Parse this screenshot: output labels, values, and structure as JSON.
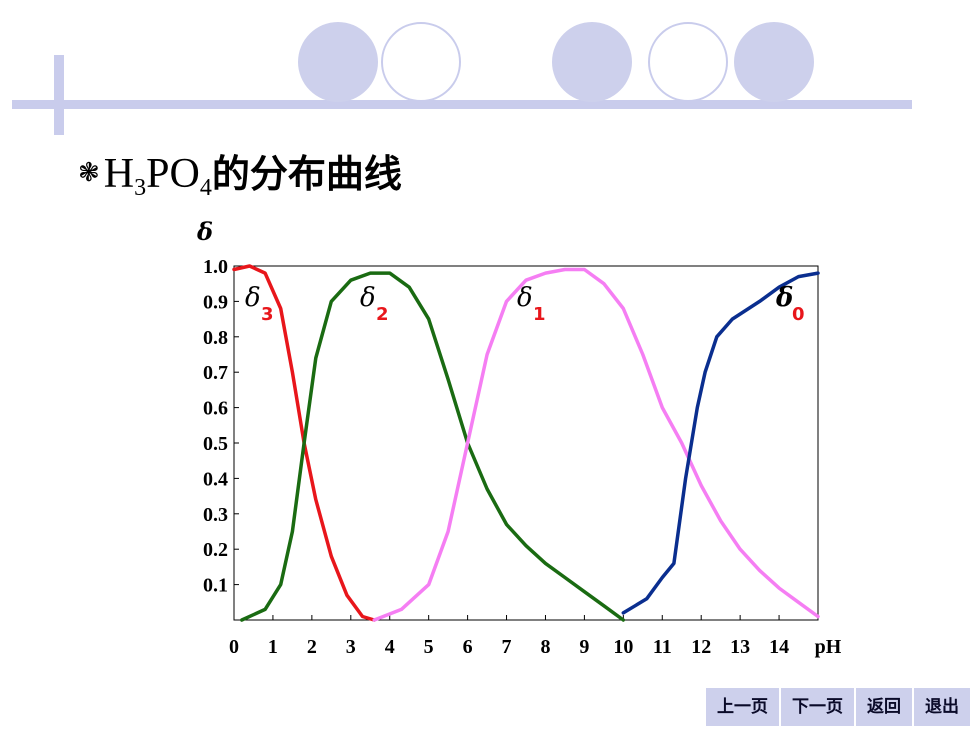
{
  "title": {
    "bullet": "❃",
    "h": "H",
    "sub3": "3",
    "po": "PO",
    "sub4": "4",
    "text": "的分布曲线"
  },
  "colors": {
    "accent_light": "#cdd0ec",
    "delta3": "#e8161b",
    "delta2": "#1a6b12",
    "delta1": "#f57ef3",
    "delta0": "#0a2e8f",
    "annotation": "#e8161b"
  },
  "nav": {
    "prev": "上一页",
    "next": "下一页",
    "back": "返回",
    "exit": "退出"
  },
  "chart_data": {
    "type": "line",
    "ylabel": "δ",
    "xlabel": "pH",
    "xlim": [
      0,
      15
    ],
    "ylim": [
      0,
      1.0
    ],
    "x_tick_labels": [
      "0",
      "1",
      "2",
      "3",
      "4",
      "5",
      "6",
      "7",
      "8",
      "9",
      "10",
      "11",
      "12",
      "13",
      "14"
    ],
    "y_tick_labels": [
      "1.0",
      "0.9",
      "0.8",
      "0.7",
      "0.6",
      "0.5",
      "0.4",
      "0.3",
      "0.2",
      "0.1"
    ],
    "y_tick_values": [
      1.0,
      0.9,
      0.8,
      0.7,
      0.6,
      0.5,
      0.4,
      0.3,
      0.2,
      0.1
    ],
    "grid": false,
    "series": [
      {
        "name": "δ3",
        "label_main": "δ",
        "label_sub": "3",
        "color": "#e8161b",
        "points": [
          [
            0,
            0.99
          ],
          [
            0.4,
            1.0
          ],
          [
            0.8,
            0.98
          ],
          [
            1.2,
            0.88
          ],
          [
            1.5,
            0.7
          ],
          [
            1.8,
            0.5
          ],
          [
            2.1,
            0.34
          ],
          [
            2.5,
            0.18
          ],
          [
            2.9,
            0.07
          ],
          [
            3.3,
            0.01
          ],
          [
            3.6,
            0.0
          ]
        ]
      },
      {
        "name": "δ2",
        "label_main": "δ",
        "label_sub": "2",
        "color": "#1a6b12",
        "points": [
          [
            0.2,
            0.0
          ],
          [
            0.8,
            0.03
          ],
          [
            1.2,
            0.1
          ],
          [
            1.5,
            0.25
          ],
          [
            1.8,
            0.5
          ],
          [
            2.1,
            0.74
          ],
          [
            2.5,
            0.9
          ],
          [
            3.0,
            0.96
          ],
          [
            3.5,
            0.98
          ],
          [
            4.0,
            0.98
          ],
          [
            4.5,
            0.94
          ],
          [
            5.0,
            0.85
          ],
          [
            5.5,
            0.68
          ],
          [
            6.0,
            0.5
          ],
          [
            6.5,
            0.37
          ],
          [
            7.0,
            0.27
          ],
          [
            7.5,
            0.21
          ],
          [
            8.0,
            0.16
          ],
          [
            8.5,
            0.12
          ],
          [
            9.0,
            0.08
          ],
          [
            9.5,
            0.04
          ],
          [
            10.0,
            0.0
          ]
        ]
      },
      {
        "name": "δ1",
        "label_main": "δ",
        "label_sub": "1",
        "color": "#f57ef3",
        "points": [
          [
            3.6,
            0.0
          ],
          [
            4.3,
            0.03
          ],
          [
            5.0,
            0.1
          ],
          [
            5.5,
            0.25
          ],
          [
            6.0,
            0.5
          ],
          [
            6.5,
            0.75
          ],
          [
            7.0,
            0.9
          ],
          [
            7.5,
            0.96
          ],
          [
            8.0,
            0.98
          ],
          [
            8.5,
            0.99
          ],
          [
            9.0,
            0.99
          ],
          [
            9.5,
            0.95
          ],
          [
            10.0,
            0.88
          ],
          [
            10.5,
            0.75
          ],
          [
            11.0,
            0.6
          ],
          [
            11.5,
            0.5
          ],
          [
            12.0,
            0.38
          ],
          [
            12.5,
            0.28
          ],
          [
            13.0,
            0.2
          ],
          [
            13.5,
            0.14
          ],
          [
            14.0,
            0.09
          ],
          [
            14.5,
            0.05
          ],
          [
            15.0,
            0.01
          ]
        ]
      },
      {
        "name": "δ0",
        "label_main": "δ",
        "label_sub": "0",
        "color": "#0a2e8f",
        "points": [
          [
            10.0,
            0.02
          ],
          [
            10.6,
            0.06
          ],
          [
            11.0,
            0.12
          ],
          [
            11.3,
            0.16
          ],
          [
            11.6,
            0.4
          ],
          [
            11.9,
            0.6
          ],
          [
            12.1,
            0.7
          ],
          [
            12.4,
            0.8
          ],
          [
            12.8,
            0.85
          ],
          [
            13.5,
            0.9
          ],
          [
            14.0,
            0.94
          ],
          [
            14.5,
            0.97
          ],
          [
            15.0,
            0.98
          ]
        ]
      }
    ]
  }
}
